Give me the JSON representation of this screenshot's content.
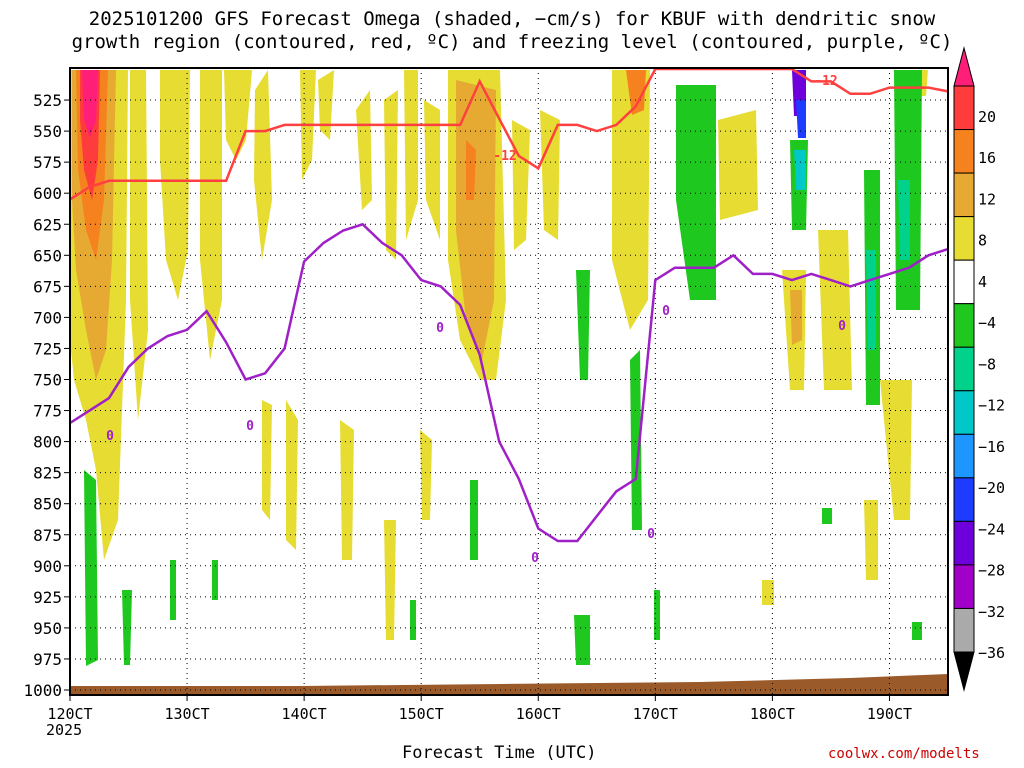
{
  "title_line1": "2025101200 GFS Forecast Omega (shaded, −cm/s) for KBUF with dendritic snow",
  "title_line2": "growth region (contoured, red, ºC) and freezing level (contoured, purple, ºC)",
  "xlabel": "Forecast Time (UTC)",
  "year_label": "2025",
  "credit": "coolwx.com/modelts",
  "chart_data": {
    "type": "heatmap",
    "title": "2025101200 GFS Forecast Omega (shaded, −cm/s) for KBUF with dendritic snow growth region (contoured, red, ºC) and freezing level (contoured, purple, ºC)",
    "xlabel": "Forecast Time (UTC)",
    "ylabel": "",
    "x_ticks": [
      "120CT",
      "130CT",
      "140CT",
      "150CT",
      "160CT",
      "170CT",
      "180CT",
      "190CT"
    ],
    "x_range_hours": [
      0,
      180
    ],
    "x_tick_hours": [
      0,
      24,
      48,
      72,
      96,
      120,
      144,
      168
    ],
    "y_ticks": [
      525,
      550,
      575,
      600,
      625,
      650,
      675,
      700,
      725,
      750,
      775,
      800,
      825,
      850,
      875,
      900,
      925,
      950,
      975,
      1000
    ],
    "y_range_hpa": [
      500,
      1000
    ],
    "grid": true,
    "colorbar": {
      "labels": [
        "20",
        "16",
        "12",
        "8",
        "4",
        "−4",
        "−8",
        "−12",
        "−16",
        "−20",
        "−24",
        "−28",
        "−32",
        "−36"
      ],
      "colors": [
        "#ff1e78",
        "#ff3c3c",
        "#f5821e",
        "#e6aa32",
        "#e6dc32",
        "#ffffff",
        "#1ec81e",
        "#00d28c",
        "#00c8c8",
        "#1e96ff",
        "#1e3cff",
        "#6e00dc",
        "#a000c8",
        "#aaaaaa",
        "#000000"
      ]
    },
    "contours": [
      {
        "label": "-12",
        "color": "#ff4040",
        "description": "dendritic snow growth region"
      },
      {
        "label": "0",
        "color": "#a020c8",
        "description": "freezing level"
      }
    ],
    "freezing_level_hpa": {
      "hours": [
        0,
        4,
        8,
        12,
        16,
        20,
        24,
        28,
        32,
        36,
        40,
        44,
        48,
        52,
        56,
        60,
        64,
        68,
        72,
        76,
        80,
        84,
        88,
        92,
        96,
        100,
        104,
        108,
        112,
        116,
        120,
        124,
        128,
        132,
        136,
        140,
        144,
        148,
        152,
        156,
        160,
        164,
        168,
        172,
        176,
        180
      ],
      "values": [
        785,
        775,
        765,
        740,
        725,
        715,
        710,
        695,
        720,
        750,
        745,
        725,
        655,
        640,
        630,
        625,
        640,
        650,
        670,
        675,
        690,
        730,
        800,
        830,
        870,
        880,
        880,
        860,
        840,
        830,
        670,
        660,
        660,
        660,
        650,
        665,
        665,
        670,
        665,
        670,
        675,
        670,
        665,
        660,
        650,
        645
      ]
    },
    "dgz_top_hpa": {
      "hours": [
        0,
        4,
        8,
        12,
        16,
        20,
        24,
        28,
        32,
        36,
        40,
        44,
        48,
        52,
        56,
        60,
        64,
        68,
        72,
        76,
        80,
        84,
        88,
        92,
        96,
        100,
        104,
        108,
        112,
        116,
        120,
        124,
        128,
        132,
        136,
        140,
        144,
        148,
        152,
        156,
        160,
        164,
        168,
        172,
        176,
        180
      ],
      "values": [
        605,
        595,
        590,
        590,
        590,
        590,
        590,
        590,
        590,
        550,
        550,
        545,
        545,
        545,
        545,
        545,
        545,
        545,
        545,
        545,
        545,
        510,
        540,
        570,
        580,
        545,
        545,
        550,
        545,
        530,
        500,
        500,
        500,
        500,
        500,
        500,
        500,
        500,
        510,
        510,
        520,
        520,
        515,
        515,
        515,
        518
      ]
    },
    "ground_pressure_hpa": 995
  }
}
